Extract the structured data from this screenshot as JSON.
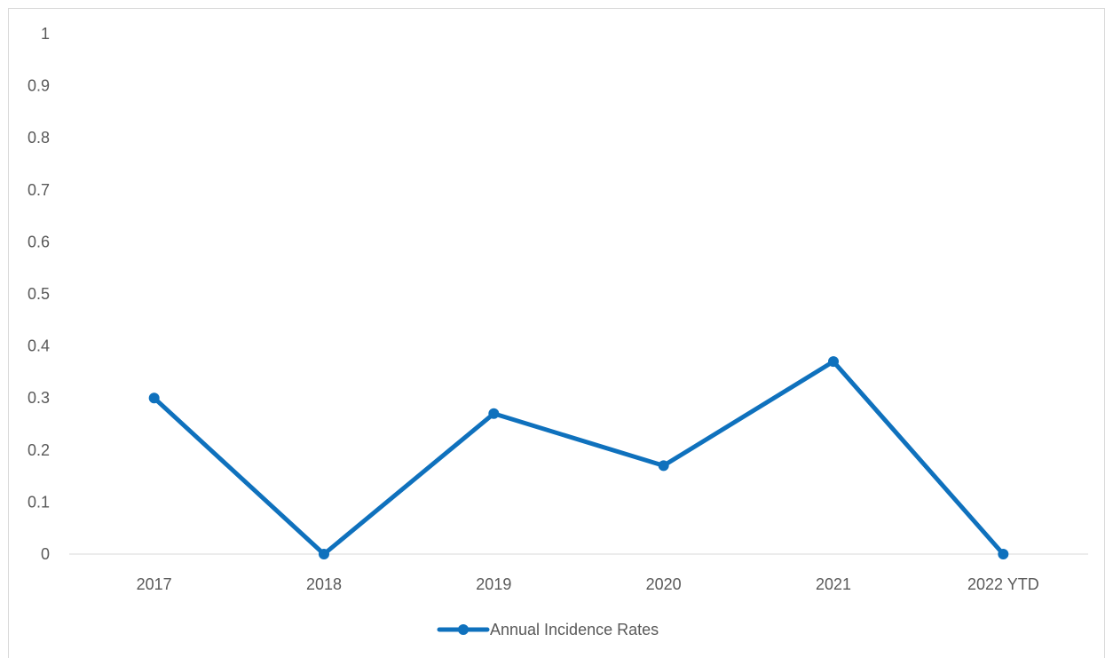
{
  "chart_data": {
    "type": "line",
    "title": "",
    "xlabel": "",
    "ylabel": "",
    "categories": [
      "2017",
      "2018",
      "2019",
      "2020",
      "2021",
      "2022 YTD"
    ],
    "series": [
      {
        "name": "Annual Incidence Rates",
        "values": [
          0.3,
          0,
          0.27,
          0.17,
          0.37,
          0
        ],
        "color": "#0f71bd"
      }
    ],
    "ylim": [
      0,
      1
    ],
    "yticks": [
      "0",
      "0.1",
      "0.2",
      "0.3",
      "0.4",
      "0.5",
      "0.6",
      "0.7",
      "0.8",
      "0.9",
      "1"
    ],
    "grid": false,
    "legend": {
      "position": "bottom",
      "label": "Annual Incidence Rates"
    },
    "axis_line_color": "#d9d9d9",
    "text_color": "#595959"
  }
}
